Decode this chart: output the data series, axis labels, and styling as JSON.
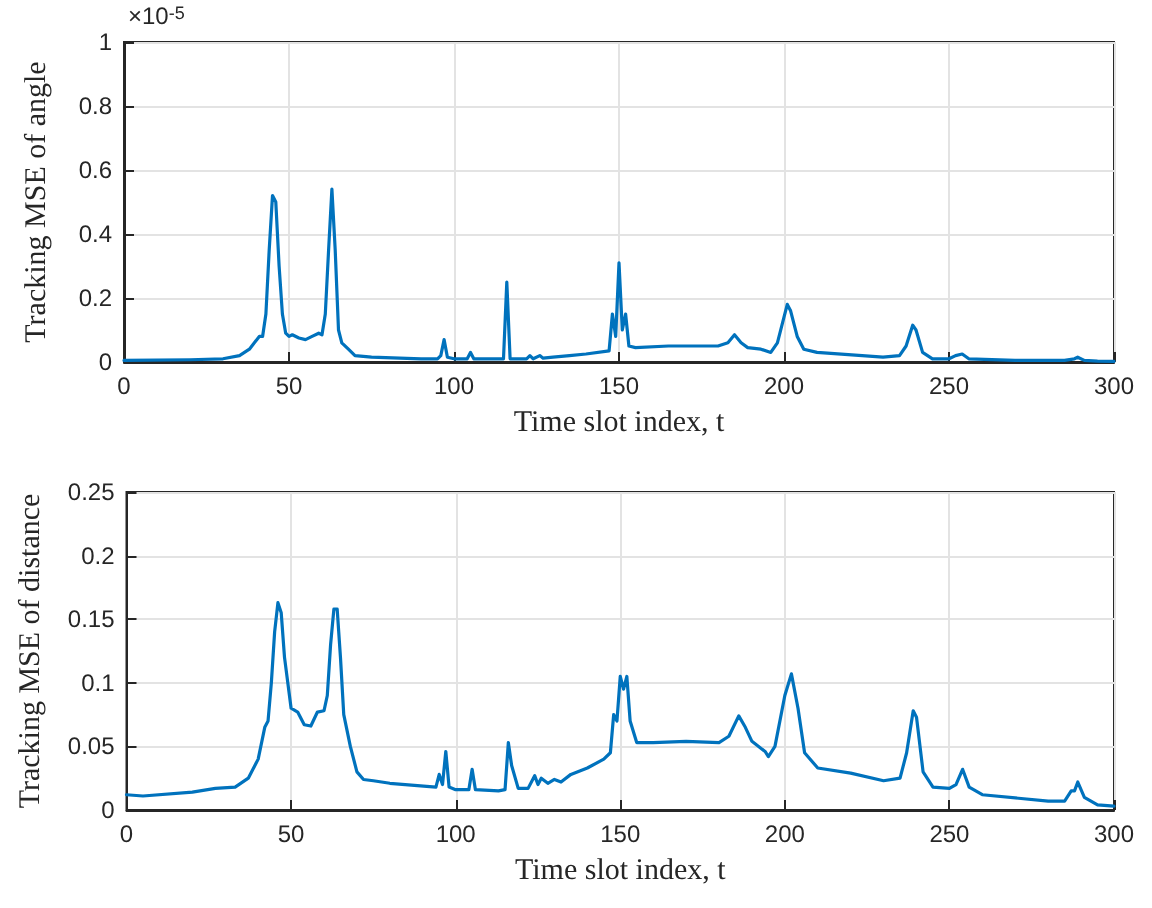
{
  "chart_data": [
    {
      "type": "line",
      "xlabel": "Time slot index, t",
      "ylabel": "Tracking MSE of angle",
      "annotations": [
        "×10$^{-5}$"
      ],
      "grid": true,
      "marker": "none",
      "line_style": "solid",
      "xlim": [
        0,
        300
      ],
      "xticks": [
        0,
        50,
        100,
        150,
        200,
        250,
        300
      ],
      "ylim": [
        0,
        1
      ],
      "yticks": [
        0,
        0.2,
        0.4,
        0.6,
        0.8,
        1
      ],
      "x": [
        0,
        20,
        30,
        35,
        38,
        41,
        42,
        43,
        44,
        45,
        46,
        47,
        48,
        49,
        50,
        51,
        53,
        55,
        57,
        59,
        60,
        61,
        62,
        63,
        64,
        65,
        66,
        68,
        70,
        75,
        90,
        95,
        96,
        97,
        98,
        100,
        104,
        105,
        106,
        115,
        116,
        117,
        122,
        123,
        124,
        126,
        127,
        130,
        135,
        140,
        147,
        148,
        149,
        150,
        151,
        152,
        153,
        155,
        165,
        175,
        180,
        183,
        185,
        187,
        189,
        193,
        196,
        198,
        200,
        201,
        202,
        204,
        206,
        210,
        230,
        235,
        237,
        239,
        240,
        242,
        245,
        250,
        252,
        254,
        256,
        270,
        285,
        288,
        289,
        291,
        295,
        300
      ],
      "series": [
        {
          "color": "#0072bd",
          "values": [
            0.005,
            0.007,
            0.01,
            0.02,
            0.04,
            0.08,
            0.08,
            0.15,
            0.35,
            0.52,
            0.5,
            0.3,
            0.15,
            0.09,
            0.08,
            0.085,
            0.075,
            0.07,
            0.08,
            0.09,
            0.085,
            0.15,
            0.35,
            0.54,
            0.35,
            0.1,
            0.06,
            0.04,
            0.02,
            0.015,
            0.01,
            0.01,
            0.02,
            0.07,
            0.015,
            0.01,
            0.01,
            0.03,
            0.01,
            0.01,
            0.25,
            0.01,
            0.01,
            0.02,
            0.01,
            0.02,
            0.012,
            0.015,
            0.02,
            0.025,
            0.035,
            0.15,
            0.08,
            0.31,
            0.1,
            0.15,
            0.05,
            0.045,
            0.05,
            0.05,
            0.05,
            0.06,
            0.085,
            0.06,
            0.045,
            0.04,
            0.03,
            0.06,
            0.14,
            0.18,
            0.16,
            0.08,
            0.04,
            0.03,
            0.015,
            0.02,
            0.05,
            0.115,
            0.1,
            0.03,
            0.01,
            0.01,
            0.02,
            0.025,
            0.01,
            0.005,
            0.005,
            0.01,
            0.015,
            0.005,
            0.003,
            0.002
          ]
        }
      ]
    },
    {
      "type": "line",
      "xlabel": "Time slot index, t",
      "ylabel": "Tracking MSE of distance",
      "grid": true,
      "marker": "none",
      "line_style": "solid",
      "xlim": [
        0,
        300
      ],
      "xticks": [
        0,
        50,
        100,
        150,
        200,
        250,
        300
      ],
      "ylim": [
        0,
        0.25
      ],
      "yticks": [
        0,
        0.05,
        0.1,
        0.15,
        0.2,
        0.25
      ],
      "x": [
        0,
        5,
        20,
        27,
        33,
        37,
        40,
        42,
        43,
        44,
        45,
        46,
        47,
        48,
        50,
        52,
        54,
        56,
        58,
        60,
        61,
        62,
        63,
        64,
        65,
        66,
        68,
        70,
        72,
        75,
        80,
        94,
        95,
        96,
        97,
        98,
        100,
        104,
        105,
        106,
        113,
        115,
        116,
        117,
        119,
        122,
        124,
        125,
        126,
        128,
        130,
        132,
        135,
        140,
        145,
        147,
        148,
        149,
        150,
        151,
        152,
        153,
        155,
        160,
        170,
        180,
        183,
        186,
        188,
        190,
        194,
        195,
        197,
        200,
        202,
        204,
        206,
        210,
        220,
        230,
        235,
        237,
        239,
        240,
        242,
        245,
        250,
        252,
        254,
        256,
        260,
        280,
        285,
        287,
        288,
        289,
        291,
        295,
        300
      ],
      "series": [
        {
          "color": "#0072bd",
          "values": [
            0.012,
            0.011,
            0.014,
            0.017,
            0.018,
            0.025,
            0.04,
            0.065,
            0.07,
            0.1,
            0.14,
            0.163,
            0.155,
            0.12,
            0.08,
            0.077,
            0.067,
            0.066,
            0.077,
            0.078,
            0.09,
            0.13,
            0.158,
            0.158,
            0.12,
            0.075,
            0.05,
            0.03,
            0.024,
            0.023,
            0.021,
            0.018,
            0.028,
            0.02,
            0.046,
            0.018,
            0.016,
            0.016,
            0.032,
            0.016,
            0.015,
            0.016,
            0.053,
            0.035,
            0.017,
            0.017,
            0.027,
            0.02,
            0.025,
            0.021,
            0.024,
            0.022,
            0.028,
            0.033,
            0.04,
            0.045,
            0.075,
            0.07,
            0.105,
            0.095,
            0.105,
            0.07,
            0.053,
            0.053,
            0.054,
            0.053,
            0.058,
            0.074,
            0.065,
            0.054,
            0.046,
            0.042,
            0.05,
            0.09,
            0.107,
            0.08,
            0.045,
            0.033,
            0.029,
            0.023,
            0.025,
            0.045,
            0.078,
            0.073,
            0.03,
            0.018,
            0.017,
            0.02,
            0.032,
            0.018,
            0.012,
            0.007,
            0.007,
            0.015,
            0.015,
            0.022,
            0.01,
            0.004,
            0.003
          ]
        }
      ]
    }
  ]
}
